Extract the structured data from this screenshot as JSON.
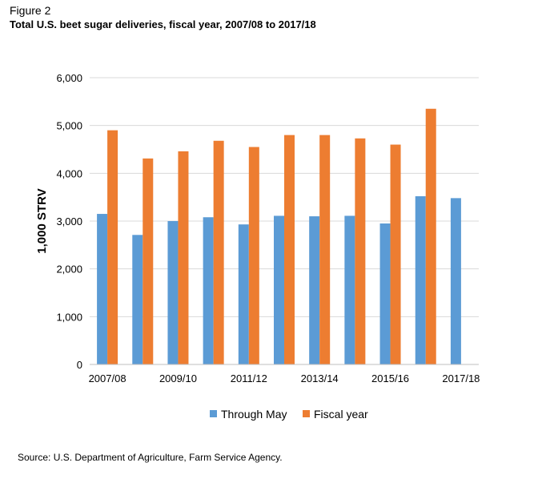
{
  "figure_label": "Figure 2",
  "source": "Source: U.S. Department of Agriculture, Farm Service Agency.",
  "colors": {
    "through_may": "#5B9BD5",
    "fiscal_year": "#ED7D31",
    "grid": "#D9D9D9",
    "axis": "#BFBFBF"
  },
  "chart_data": {
    "type": "bar",
    "title": "Total U.S. beet sugar deliveries, fiscal year, 2007/08 to 2017/18",
    "xlabel": "",
    "ylabel": "1,000 STRV",
    "ylim": [
      0,
      6000
    ],
    "yticks": [
      "0",
      "1,000",
      "2,000",
      "3,000",
      "4,000",
      "5,000",
      "6,000"
    ],
    "categories": [
      "2007/08",
      "2008/09",
      "2009/10",
      "2010/11",
      "2011/12",
      "2012/13",
      "2013/14",
      "2014/15",
      "2015/16",
      "2016/17",
      "2017/18"
    ],
    "xtick_labels": [
      "2007/08",
      "",
      "2009/10",
      "",
      "2011/12",
      "",
      "2013/14",
      "",
      "2015/16",
      "",
      "2017/18"
    ],
    "series": [
      {
        "name": "Through May",
        "color": "#5B9BD5",
        "values": [
          3150,
          2710,
          3000,
          3080,
          2930,
          3110,
          3100,
          3110,
          2950,
          3520,
          3480
        ]
      },
      {
        "name": "Fiscal year",
        "color": "#ED7D31",
        "values": [
          4900,
          4310,
          4460,
          4680,
          4550,
          4800,
          4800,
          4730,
          4600,
          5350,
          null
        ]
      }
    ],
    "grid": true,
    "legend": "bottom"
  }
}
